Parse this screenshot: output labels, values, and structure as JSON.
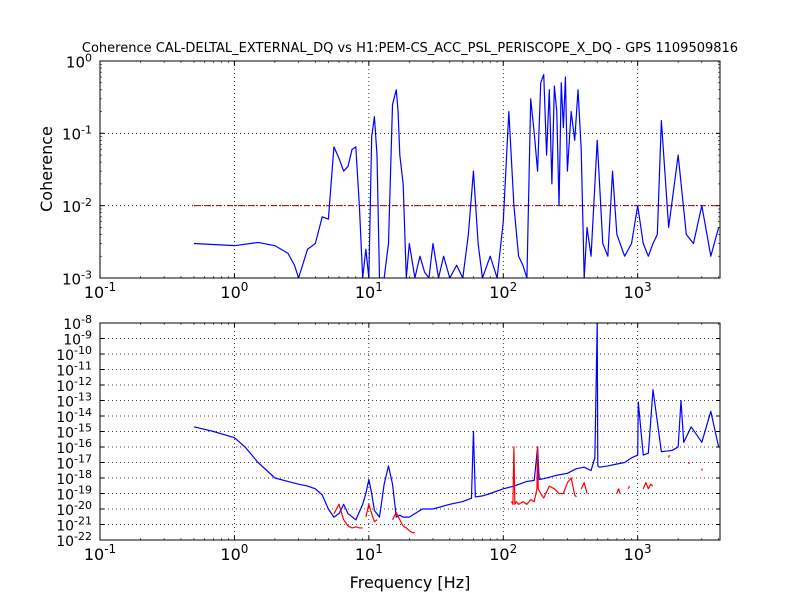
{
  "chart_data": [
    {
      "type": "line",
      "title": "Coherence CAL-DELTAL_EXTERNAL_DQ vs H1:PEM-CS_ACC_PSL_PERISCOPE_X_DQ - GPS 1109509816",
      "xlabel": "",
      "ylabel": "Coherence",
      "xscale": "log",
      "yscale": "log",
      "xlim": [
        0.1,
        4096
      ],
      "ylim": [
        0.001,
        1
      ],
      "grid": true,
      "x_ticks": [
        {
          "base": "10",
          "exp": "-1"
        },
        {
          "base": "10",
          "exp": "0"
        },
        {
          "base": "10",
          "exp": "1"
        },
        {
          "base": "10",
          "exp": "2"
        },
        {
          "base": "10",
          "exp": "3"
        }
      ],
      "y_ticks": [
        {
          "base": "10",
          "exp": "-3"
        },
        {
          "base": "10",
          "exp": "-2"
        },
        {
          "base": "10",
          "exp": "-1"
        },
        {
          "base": "10",
          "exp": "0"
        }
      ],
      "threshold": {
        "value": 0.01,
        "x_range": [
          0.5,
          4096
        ],
        "color": "#aa0000",
        "style": "dashdot"
      },
      "series": [
        {
          "color": "#0000ff",
          "x": [
            0.5,
            1.0,
            1.5,
            2.0,
            2.5,
            2.8,
            3.0,
            3.5,
            4.0,
            4.5,
            5.0,
            5.5,
            6.0,
            6.5,
            7.0,
            7.5,
            8.0,
            8.5,
            9.0,
            9.5,
            10.0,
            10.5,
            11.0,
            11.5,
            12.0,
            13.0,
            14.0,
            15.0,
            16.0,
            16.5,
            17.0,
            18.0,
            19.0,
            20.0,
            22.0,
            24.0,
            26.0,
            28.0,
            30.0,
            33.0,
            36.0,
            40.0,
            45.0,
            50.0,
            55.0,
            60.0,
            65.0,
            70.0,
            80.0,
            90.0,
            100.0,
            110.0,
            120.0,
            130.0,
            140.0,
            150.0,
            160.0,
            170.0,
            180.0,
            190.0,
            200.0,
            210.0,
            220.0,
            230.0,
            240.0,
            250.0,
            260.0,
            270.0,
            280.0,
            290.0,
            300.0,
            320.0,
            340.0,
            360.0,
            380.0,
            400.0,
            420.0,
            450.0,
            500.0,
            550.0,
            600.0,
            650.0,
            700.0,
            800.0,
            900.0,
            1000.0,
            1100.0,
            1200.0,
            1300.0,
            1400.0,
            1500.0,
            1700.0,
            2000.0,
            2300.0,
            2600.0,
            3000.0,
            3500.0,
            4000.0
          ],
          "y": [
            0.003,
            0.0028,
            0.0031,
            0.0028,
            0.0022,
            0.0015,
            0.001,
            0.0025,
            0.003,
            0.007,
            0.0065,
            0.065,
            0.045,
            0.03,
            0.035,
            0.06,
            0.065,
            0.01,
            0.001,
            0.0025,
            0.001,
            0.09,
            0.17,
            0.05,
            0.001,
            0.001,
            0.003,
            0.25,
            0.4,
            0.2,
            0.05,
            0.02,
            0.001,
            0.003,
            0.001,
            0.002,
            0.0012,
            0.001,
            0.003,
            0.001,
            0.002,
            0.001,
            0.0015,
            0.001,
            0.004,
            0.03,
            0.003,
            0.001,
            0.002,
            0.001,
            0.006,
            0.2,
            0.01,
            0.002,
            0.0015,
            0.001,
            0.3,
            0.1,
            0.03,
            0.5,
            0.65,
            0.05,
            0.4,
            0.02,
            0.45,
            0.2,
            0.01,
            0.5,
            0.12,
            0.6,
            0.03,
            0.2,
            0.08,
            0.4,
            0.06,
            0.001,
            0.005,
            0.002,
            0.08,
            0.003,
            0.002,
            0.03,
            0.004,
            0.002,
            0.003,
            0.01,
            0.003,
            0.002,
            0.003,
            0.004,
            0.15,
            0.005,
            0.05,
            0.004,
            0.003,
            0.01,
            0.002,
            0.005
          ]
        }
      ]
    },
    {
      "type": "line",
      "title": "",
      "xlabel": "Frequency [Hz]",
      "ylabel": "",
      "xscale": "log",
      "yscale": "log",
      "xlim": [
        0.1,
        4096
      ],
      "ylim": [
        1e-22,
        1e-08
      ],
      "grid": true,
      "x_ticks": [
        {
          "base": "10",
          "exp": "-1"
        },
        {
          "base": "10",
          "exp": "0"
        },
        {
          "base": "10",
          "exp": "1"
        },
        {
          "base": "10",
          "exp": "2"
        },
        {
          "base": "10",
          "exp": "3"
        }
      ],
      "y_ticks": [
        {
          "base": "10",
          "exp": "-22"
        },
        {
          "base": "10",
          "exp": "-21"
        },
        {
          "base": "10",
          "exp": "-20"
        },
        {
          "base": "10",
          "exp": "-19"
        },
        {
          "base": "10",
          "exp": "-18"
        },
        {
          "base": "10",
          "exp": "-17"
        },
        {
          "base": "10",
          "exp": "-16"
        },
        {
          "base": "10",
          "exp": "-15"
        },
        {
          "base": "10",
          "exp": "-14"
        },
        {
          "base": "10",
          "exp": "-13"
        },
        {
          "base": "10",
          "exp": "-12"
        },
        {
          "base": "10",
          "exp": "-11"
        },
        {
          "base": "10",
          "exp": "-10"
        },
        {
          "base": "10",
          "exp": "-9"
        },
        {
          "base": "10",
          "exp": "-8"
        }
      ],
      "series": [
        {
          "color": "#0000ff",
          "x": [
            0.5,
            0.7,
            1.0,
            1.2,
            1.5,
            2.0,
            2.5,
            3.0,
            3.5,
            4.0,
            4.5,
            5.0,
            5.5,
            6.0,
            6.5,
            7.0,
            8.0,
            9.0,
            9.5,
            10.0,
            10.5,
            11.0,
            12.0,
            13.0,
            14.0,
            15.0,
            16.0,
            17.0,
            18.0,
            20.0,
            25.0,
            30.0,
            40.0,
            50.0,
            58.0,
            60.0,
            62.0,
            70.0,
            80.0,
            100.0,
            120.0,
            150.0,
            170.0,
            180.0,
            185.0,
            200.0,
            250.0,
            300.0,
            350.0,
            400.0,
            450.0,
            480.0,
            500.0,
            505.0,
            520.0,
            600.0,
            700.0,
            800.0,
            900.0,
            1000.0,
            1010.0,
            1100.0,
            1200.0,
            1300.0,
            1500.0,
            1800.0,
            2000.0,
            2100.0,
            2200.0,
            2500.0,
            3000.0,
            3500.0,
            4000.0
          ],
          "y": [
            2e-15,
            1e-15,
            4e-16,
            1e-16,
            1e-17,
            1e-18,
            6e-19,
            4e-19,
            3e-19,
            2e-19,
            8e-20,
            1e-20,
            3e-21,
            5e-21,
            2e-20,
            5e-21,
            2e-21,
            2e-20,
            1e-19,
            8e-19,
            1e-19,
            8e-21,
            3e-21,
            4e-19,
            6e-18,
            4e-19,
            3e-21,
            4e-21,
            3e-21,
            3e-21,
            1e-20,
            1e-20,
            2e-20,
            3e-20,
            5e-20,
            1e-15,
            6e-20,
            7e-20,
            1e-19,
            2e-19,
            3e-19,
            6e-19,
            7e-19,
            1e-16,
            8e-19,
            9e-19,
            1.5e-18,
            2e-18,
            4e-18,
            5e-18,
            3e-18,
            2e-17,
            1e-08,
            6e-18,
            5e-18,
            6e-18,
            8e-18,
            1e-17,
            2e-17,
            3e-17,
            8e-14,
            3e-17,
            4e-17,
            5e-13,
            5e-17,
            6e-17,
            1e-16,
            1e-13,
            2e-16,
            2e-15,
            2e-16,
            2e-14,
            1e-16
          ]
        },
        {
          "color": "#ff0000",
          "segments": [
            {
              "x": [
                5.5,
                6.0,
                6.5,
                7.0,
                7.5,
                8.0,
                8.5,
                9.0
              ],
              "y": [
                5e-21,
                2e-20,
                2e-21,
                8e-22,
                6e-22,
                7e-22,
                6e-22,
                6e-22
              ]
            },
            {
              "x": [
                9.5,
                10.0,
                10.5,
                11.0,
                11.5
              ],
              "y": [
                3e-21,
                2e-20,
                5e-21,
                1.5e-21,
                2e-21
              ]
            },
            {
              "x": [
                15.0,
                16.0,
                17.0,
                18.0,
                19.0,
                20.0,
                21.0,
                22.0
              ],
              "y": [
                2e-21,
                6e-21,
                2e-21,
                8e-22,
                6e-22,
                4e-22,
                3e-22,
                3e-22
              ]
            },
            {
              "x": [
                115.0,
                118.0,
                120.0,
                122.0,
                125.0,
                130.0,
                140.0,
                150.0,
                160.0,
                170.0,
                178.0,
                180.0,
                182.0,
                190.0,
                200.0
              ],
              "y": [
                3e-20,
                2e-20,
                1e-16,
                2e-20,
                3e-20,
                2e-20,
                3e-20,
                2e-20,
                4e-20,
                3e-20,
                2e-19,
                1e-16,
                2e-19,
                1e-19,
                5e-20
              ]
            },
            {
              "x": [
                200.0,
                220.0,
                240.0,
                260.0,
                280.0,
                300.0,
                320.0,
                340.0,
                350.0
              ],
              "y": [
                5e-20,
                3e-19,
                2e-19,
                1e-19,
                1e-19,
                5e-19,
                1e-18,
                8e-20,
                6e-20
              ]
            },
            {
              "x": [
                380.0,
                400.0,
                420.0
              ],
              "y": [
                2e-19,
                5e-19,
                1e-19
              ]
            },
            {
              "x": [
                700.0,
                720.0,
                740.0
              ],
              "y": [
                1e-19,
                2e-19,
                1e-19
              ]
            },
            {
              "x": [
                850.0,
                870.0
              ],
              "y": [
                2e-19,
                3e-19
              ]
            },
            {
              "x": [
                1100.0,
                1150.0,
                1200.0,
                1250.0,
                1300.0
              ],
              "y": [
                2e-19,
                5e-19,
                2e-19,
                4e-19,
                3e-19
              ]
            },
            {
              "x": [
                1700.0,
                1720.0
              ],
              "y": [
                2e-17,
                3e-17
              ]
            },
            {
              "x": [
                2400.0,
                2420.0
              ],
              "y": [
                8e-18,
                1e-17
              ]
            },
            {
              "x": [
                3000.0,
                3020.0
              ],
              "y": [
                3e-18,
                4e-18
              ]
            }
          ]
        }
      ]
    }
  ]
}
